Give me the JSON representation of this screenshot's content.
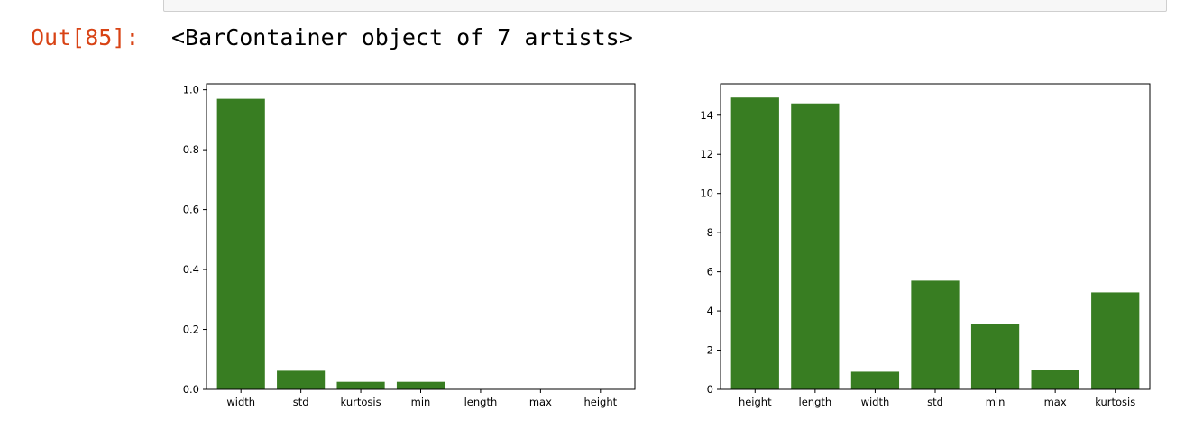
{
  "cell": {
    "prompt": "Out[85]:",
    "output_text": "<BarContainer object of 7 artists>"
  },
  "colors": {
    "prompt": "#d84315",
    "bar": "#387d22"
  },
  "chart_data": [
    {
      "type": "bar",
      "categories": [
        "width",
        "std",
        "kurtosis",
        "min",
        "length",
        "max",
        "height"
      ],
      "values": [
        0.97,
        0.062,
        0.025,
        0.025,
        0.0,
        0.0,
        0.0
      ],
      "ylim": [
        0,
        1.02
      ],
      "yticks": [
        "0.0",
        "0.2",
        "0.4",
        "0.6",
        "0.8",
        "1.0"
      ],
      "ytick_values": [
        0,
        0.2,
        0.4,
        0.6,
        0.8,
        1.0
      ],
      "grid": false
    },
    {
      "type": "bar",
      "categories": [
        "height",
        "length",
        "width",
        "std",
        "min",
        "max",
        "kurtosis"
      ],
      "values": [
        14.9,
        14.6,
        0.9,
        5.55,
        3.35,
        1.0,
        4.95
      ],
      "ylim": [
        0,
        15.6
      ],
      "yticks": [
        "0",
        "2",
        "4",
        "6",
        "8",
        "10",
        "12",
        "14"
      ],
      "ytick_values": [
        0,
        2,
        4,
        6,
        8,
        10,
        12,
        14
      ],
      "grid": false
    }
  ]
}
